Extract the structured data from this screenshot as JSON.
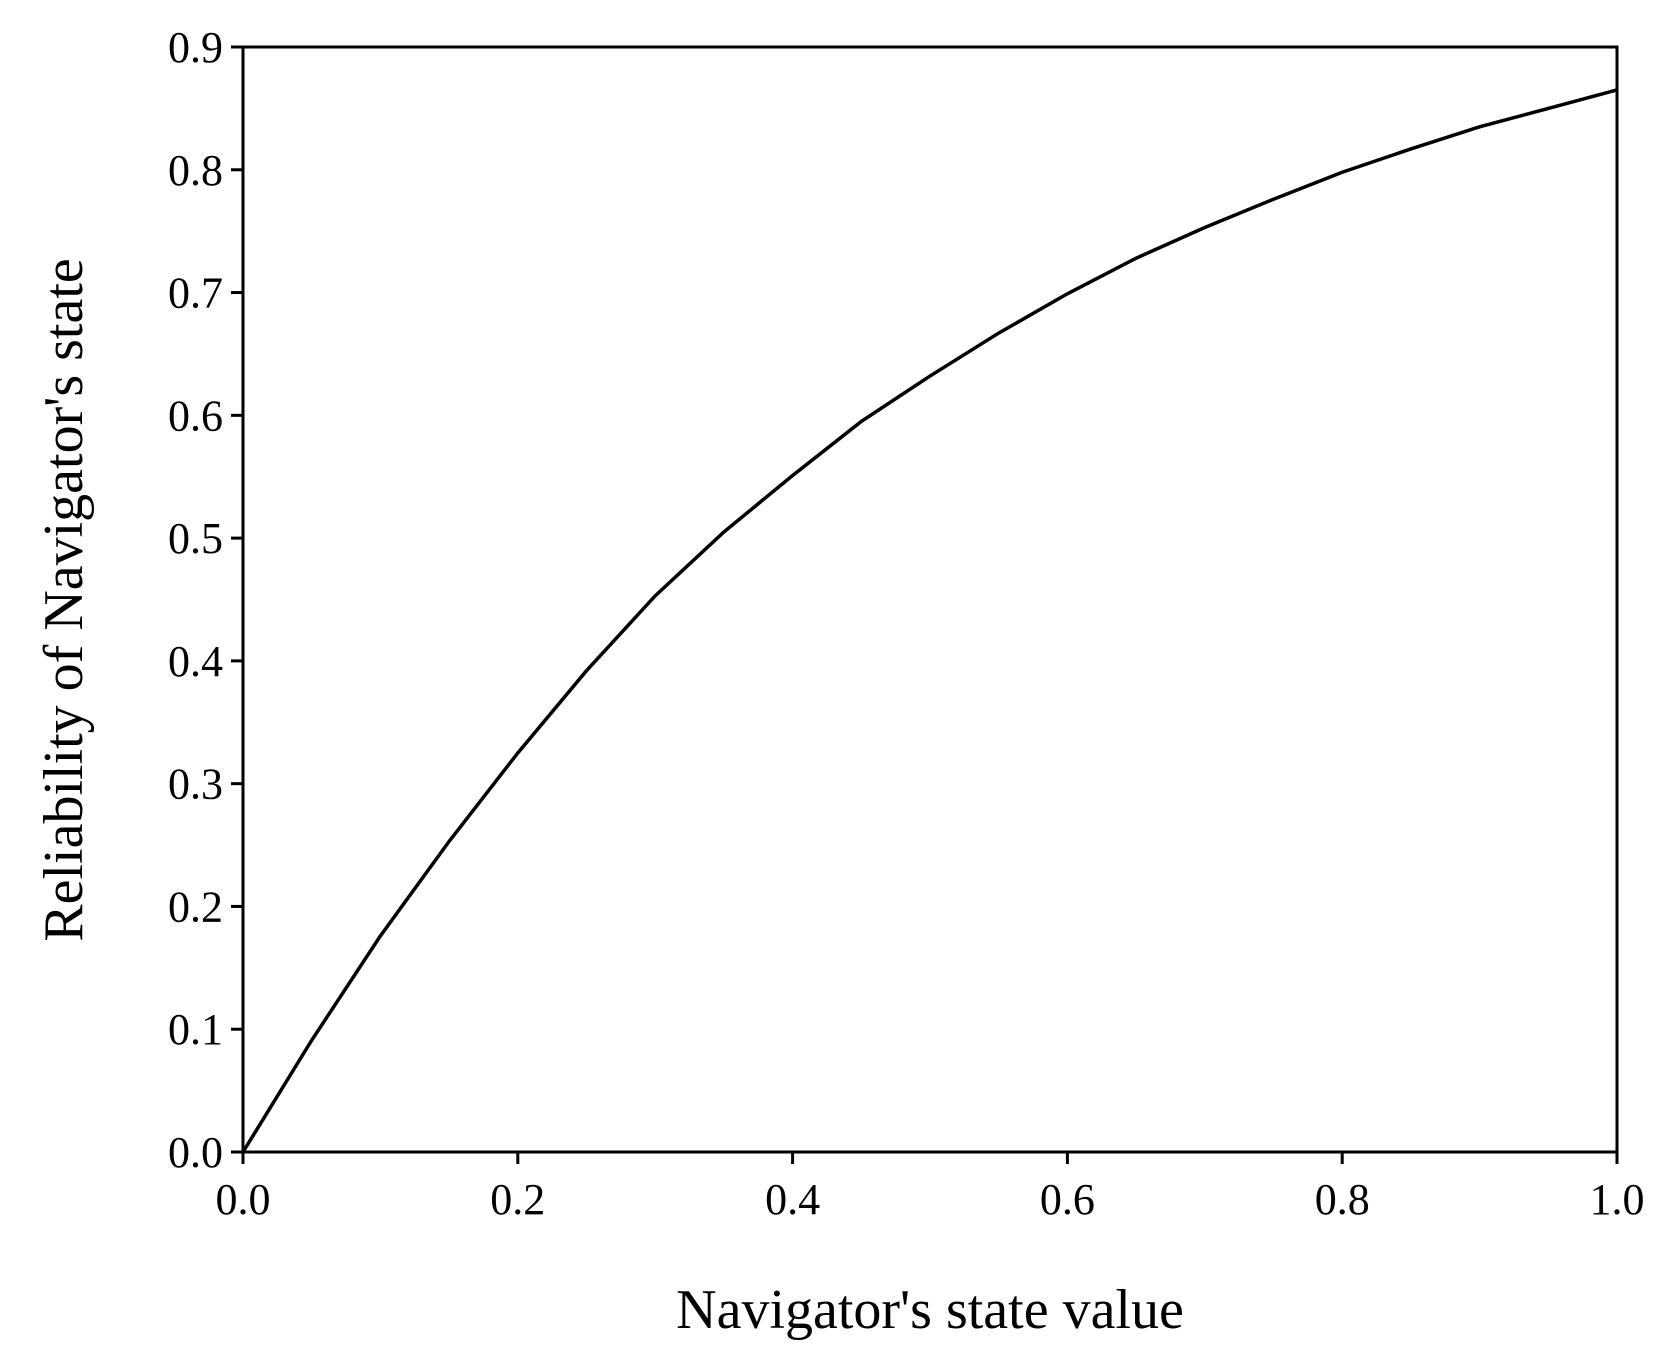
{
  "chart_data": {
    "type": "line",
    "title": "",
    "xlabel": "Navigator's state value",
    "ylabel": "Reliability of Navigator's state",
    "xlim": [
      0.0,
      1.0
    ],
    "ylim": [
      0.0,
      0.9
    ],
    "x_ticks": [
      "0.0",
      "0.2",
      "0.4",
      "0.6",
      "0.8",
      "1.0"
    ],
    "y_ticks": [
      "0.0",
      "0.1",
      "0.2",
      "0.3",
      "0.4",
      "0.5",
      "0.6",
      "0.7",
      "0.8",
      "0.9"
    ],
    "grid": false,
    "legend": "none",
    "series": [
      {
        "color": "#000000",
        "points": [
          [
            0.0,
            0.0
          ],
          [
            0.05,
            0.091
          ],
          [
            0.1,
            0.176
          ],
          [
            0.15,
            0.253
          ],
          [
            0.2,
            0.325
          ],
          [
            0.25,
            0.392
          ],
          [
            0.3,
            0.453
          ],
          [
            0.35,
            0.505
          ],
          [
            0.4,
            0.551
          ],
          [
            0.45,
            0.595
          ],
          [
            0.5,
            0.632
          ],
          [
            0.55,
            0.667
          ],
          [
            0.6,
            0.699
          ],
          [
            0.65,
            0.728
          ],
          [
            0.7,
            0.753
          ],
          [
            0.75,
            0.776
          ],
          [
            0.8,
            0.798
          ],
          [
            0.85,
            0.817
          ],
          [
            0.9,
            0.835
          ],
          [
            0.95,
            0.85
          ],
          [
            1.0,
            0.865
          ]
        ]
      }
    ]
  }
}
